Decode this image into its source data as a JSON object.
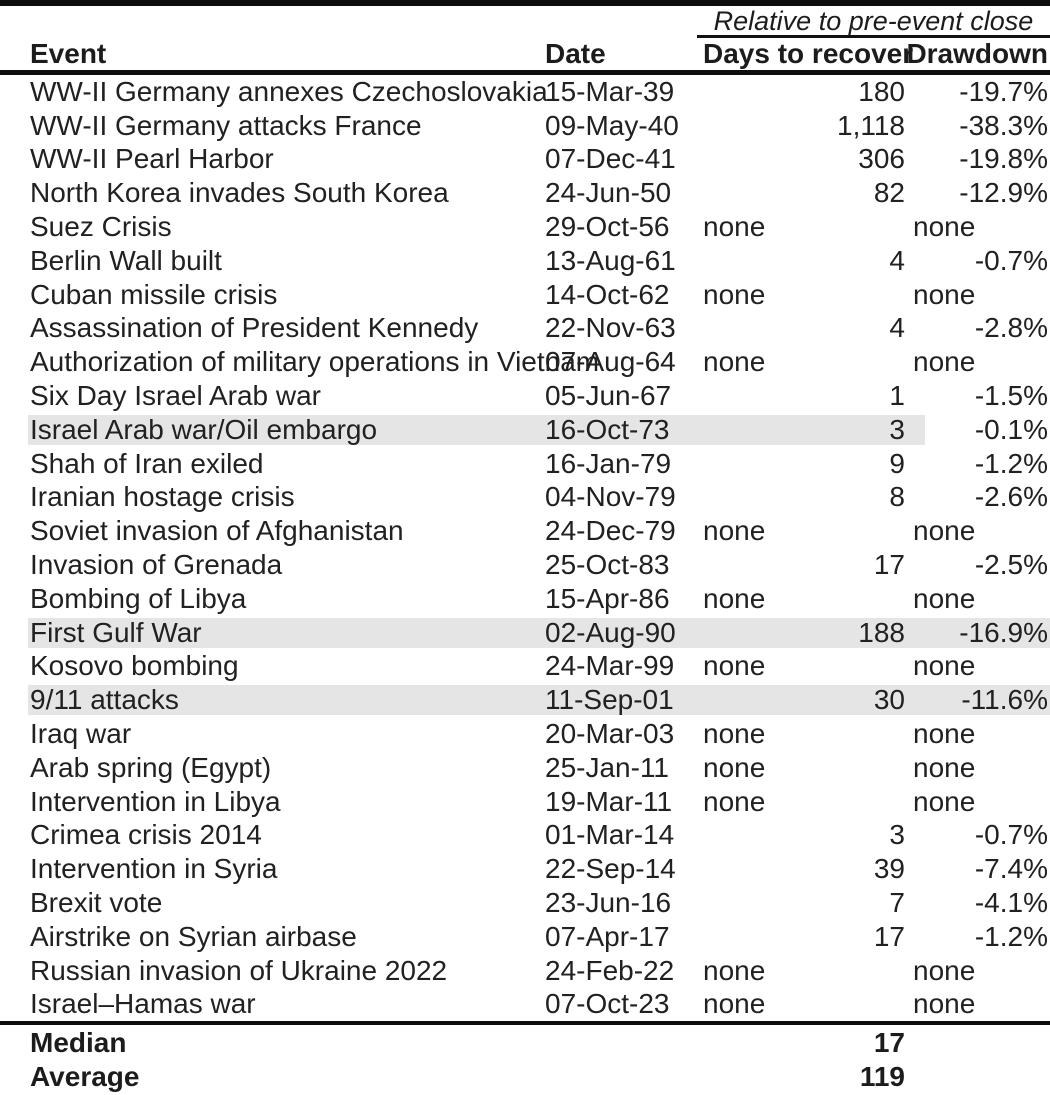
{
  "chart_data": {
    "type": "table",
    "spanner": "Relative to pre-event close",
    "columns": [
      "Event",
      "Date",
      "Days to recover",
      "Drawdown"
    ],
    "highlight_color": "#e5e5e5",
    "rule_color": "#0d0d0d",
    "rows": [
      {
        "event": "WW-II Germany annexes Czechoslovakia",
        "date": "15-Mar-39",
        "days": "180",
        "drawdown": "-19.7%"
      },
      {
        "event": "WW-II Germany attacks France",
        "date": "09-May-40",
        "days": "1,118",
        "drawdown": "-38.3%"
      },
      {
        "event": "WW-II Pearl Harbor",
        "date": "07-Dec-41",
        "days": "306",
        "drawdown": "-19.8%"
      },
      {
        "event": "North Korea invades South Korea",
        "date": "24-Jun-50",
        "days": "82",
        "drawdown": "-12.9%"
      },
      {
        "event": "Suez Crisis",
        "date": "29-Oct-56",
        "days": "none",
        "drawdown": "none"
      },
      {
        "event": "Berlin Wall built",
        "date": "13-Aug-61",
        "days": "4",
        "drawdown": "-0.7%"
      },
      {
        "event": "Cuban missile crisis",
        "date": "14-Oct-62",
        "days": "none",
        "drawdown": "none"
      },
      {
        "event": "Assassination of President Kennedy",
        "date": "22-Nov-63",
        "days": "4",
        "drawdown": "-2.8%"
      },
      {
        "event": "Authorization of military operations in Vietnam",
        "date": "07-Aug-64",
        "days": "none",
        "drawdown": "none"
      },
      {
        "event": "Six Day Israel Arab war",
        "date": "05-Jun-67",
        "days": "1",
        "drawdown": "-1.5%"
      },
      {
        "event": "Israel Arab war/Oil embargo",
        "date": "16-Oct-73",
        "days": "3",
        "drawdown": "-0.1%",
        "highlight": "partial"
      },
      {
        "event": "Shah of Iran exiled",
        "date": "16-Jan-79",
        "days": "9",
        "drawdown": "-1.2%"
      },
      {
        "event": "Iranian hostage crisis",
        "date": "04-Nov-79",
        "days": "8",
        "drawdown": "-2.6%"
      },
      {
        "event": "Soviet invasion of Afghanistan",
        "date": "24-Dec-79",
        "days": "none",
        "drawdown": "none"
      },
      {
        "event": "Invasion of Grenada",
        "date": "25-Oct-83",
        "days": "17",
        "drawdown": "-2.5%"
      },
      {
        "event": "Bombing of Libya",
        "date": "15-Apr-86",
        "days": "none",
        "drawdown": "none"
      },
      {
        "event": "First Gulf War",
        "date": "02-Aug-90",
        "days": "188",
        "drawdown": "-16.9%",
        "highlight": "full"
      },
      {
        "event": "Kosovo bombing",
        "date": "24-Mar-99",
        "days": "none",
        "drawdown": "none"
      },
      {
        "event": "9/11 attacks",
        "date": "11-Sep-01",
        "days": "30",
        "drawdown": "-11.6%",
        "highlight": "full"
      },
      {
        "event": "Iraq war",
        "date": "20-Mar-03",
        "days": "none",
        "drawdown": "none"
      },
      {
        "event": "Arab spring (Egypt)",
        "date": "25-Jan-11",
        "days": "none",
        "drawdown": "none"
      },
      {
        "event": "Intervention in Libya",
        "date": "19-Mar-11",
        "days": "none",
        "drawdown": "none"
      },
      {
        "event": "Crimea crisis 2014",
        "date": "01-Mar-14",
        "days": "3",
        "drawdown": "-0.7%"
      },
      {
        "event": "Intervention in Syria",
        "date": "22-Sep-14",
        "days": "39",
        "drawdown": "-7.4%"
      },
      {
        "event": "Brexit vote",
        "date": "23-Jun-16",
        "days": "7",
        "drawdown": "-4.1%"
      },
      {
        "event": "Airstrike on Syrian airbase",
        "date": "07-Apr-17",
        "days": "17",
        "drawdown": "-1.2%"
      },
      {
        "event": "Russian invasion of Ukraine 2022",
        "date": "24-Feb-22",
        "days": "none",
        "drawdown": "none"
      },
      {
        "event": "Israel–Hamas war",
        "date": "07-Oct-23",
        "days": "none",
        "drawdown": "none"
      }
    ],
    "summary": [
      {
        "label": "Median",
        "days": "17"
      },
      {
        "label": "Average",
        "days": "119"
      }
    ]
  }
}
